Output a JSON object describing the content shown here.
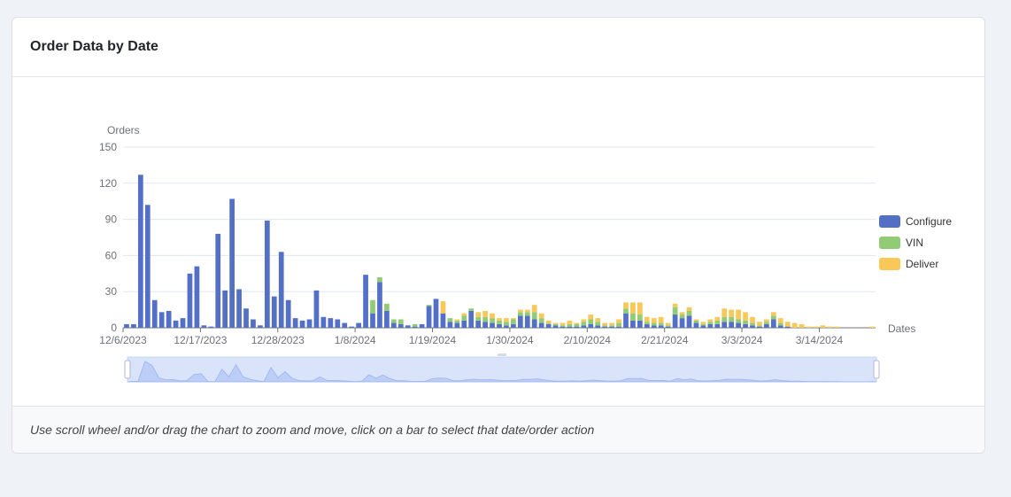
{
  "card": {
    "title": "Order Data by Date",
    "footer_hint": "Use scroll wheel and/or drag the chart to zoom and move, click on a bar to select that date/order action"
  },
  "chart_data": {
    "type": "bar",
    "stacked": true,
    "ylabel": "Orders",
    "xlabel": "Dates",
    "ylim": [
      0,
      150
    ],
    "yticks": [
      0,
      30,
      60,
      90,
      120,
      150
    ],
    "grid": true,
    "legend_position": "right",
    "x_tick_labels": [
      "12/6/2023",
      "12/17/2023",
      "12/28/2023",
      "1/8/2024",
      "1/19/2024",
      "1/30/2024",
      "2/10/2024",
      "2/21/2024",
      "3/3/2024",
      "3/14/2024"
    ],
    "x_tick_every": 11,
    "n_days": 107,
    "series": [
      {
        "name": "Configure",
        "color": "#5470c6",
        "values": [
          3,
          3,
          127,
          102,
          23,
          13,
          14,
          6,
          8,
          45,
          51,
          2,
          1,
          78,
          31,
          107,
          32,
          16,
          7,
          2,
          89,
          26,
          63,
          23,
          8,
          6,
          7,
          31,
          9,
          8,
          7,
          4,
          1,
          4,
          44,
          12,
          38,
          14,
          4,
          3,
          2,
          1,
          3,
          18,
          24,
          12,
          5,
          4,
          6,
          14,
          6,
          5,
          4,
          3,
          2,
          3,
          10,
          10,
          7,
          4,
          3,
          2,
          1,
          1,
          1,
          2,
          3,
          2,
          1,
          1,
          1,
          12,
          6,
          6,
          3,
          2,
          2,
          1,
          11,
          8,
          10,
          4,
          2,
          3,
          3,
          5,
          5,
          4,
          3,
          2,
          1,
          3,
          7,
          2,
          1,
          0,
          0,
          0,
          0,
          0,
          0,
          0,
          0,
          0,
          0,
          0,
          0
        ]
      },
      {
        "name": "VIN",
        "color": "#91cc75",
        "values": [
          0,
          0,
          0,
          0,
          0,
          0,
          0,
          0,
          0,
          0,
          0,
          0,
          0,
          0,
          0,
          0,
          0,
          0,
          0,
          0,
          0,
          0,
          0,
          0,
          0,
          0,
          0,
          0,
          0,
          0,
          0,
          0,
          0,
          0,
          0,
          11,
          4,
          6,
          3,
          4,
          0,
          2,
          0,
          1,
          0,
          0,
          3,
          2,
          4,
          2,
          3,
          4,
          4,
          3,
          3,
          4,
          3,
          3,
          6,
          4,
          1,
          1,
          1,
          2,
          2,
          3,
          4,
          3,
          1,
          1,
          3,
          4,
          6,
          5,
          2,
          2,
          2,
          1,
          6,
          3,
          4,
          2,
          1,
          2,
          3,
          4,
          4,
          3,
          3,
          2,
          1,
          2,
          3,
          2,
          0,
          0,
          0,
          0,
          0,
          0,
          0,
          0,
          0,
          0,
          0,
          0,
          0
        ]
      },
      {
        "name": "Deliver",
        "color": "#fac858",
        "values": [
          0,
          0,
          0,
          0,
          0,
          0,
          0,
          0,
          0,
          0,
          0,
          0,
          0,
          0,
          0,
          0,
          0,
          0,
          0,
          0,
          0,
          0,
          0,
          0,
          0,
          0,
          0,
          0,
          0,
          0,
          0,
          0,
          0,
          0,
          0,
          0,
          0,
          0,
          0,
          0,
          0,
          0,
          0,
          0,
          0,
          10,
          0,
          1,
          2,
          0,
          4,
          5,
          4,
          2,
          3,
          1,
          2,
          2,
          6,
          4,
          2,
          1,
          2,
          3,
          1,
          2,
          4,
          3,
          2,
          2,
          3,
          5,
          9,
          10,
          4,
          4,
          5,
          2,
          3,
          2,
          3,
          1,
          2,
          2,
          3,
          7,
          6,
          8,
          7,
          5,
          3,
          2,
          3,
          4,
          4,
          4,
          3,
          1,
          1,
          2,
          1,
          1,
          0,
          0,
          0,
          0,
          1
        ]
      }
    ]
  }
}
